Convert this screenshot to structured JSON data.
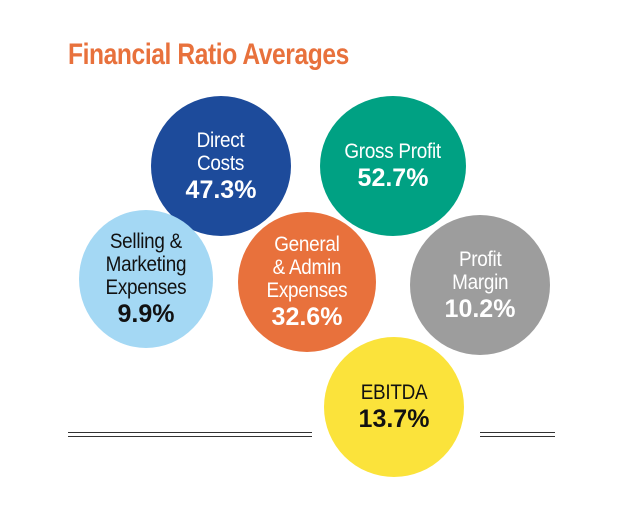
{
  "title": "Financial Ratio Averages",
  "ratios": {
    "direct_costs": {
      "label": "Direct\nCosts",
      "value": "47.3%",
      "color": "#1d4b9b"
    },
    "gross_profit": {
      "label": "Gross Profit",
      "value": "52.7%",
      "color": "#00a183"
    },
    "selling_marketing": {
      "label": "Selling &\nMarketing\nExpenses",
      "value": "9.9%",
      "color": "#a4d8f4"
    },
    "general_admin": {
      "label": "General\n& Admin\nExpenses",
      "value": "32.6%",
      "color": "#e8713c"
    },
    "profit_margin": {
      "label": "Profit\nMargin",
      "value": "10.2%",
      "color": "#9d9d9d"
    },
    "ebitda": {
      "label": "EBITDA",
      "value": "13.7%",
      "color": "#fbe33b"
    }
  }
}
